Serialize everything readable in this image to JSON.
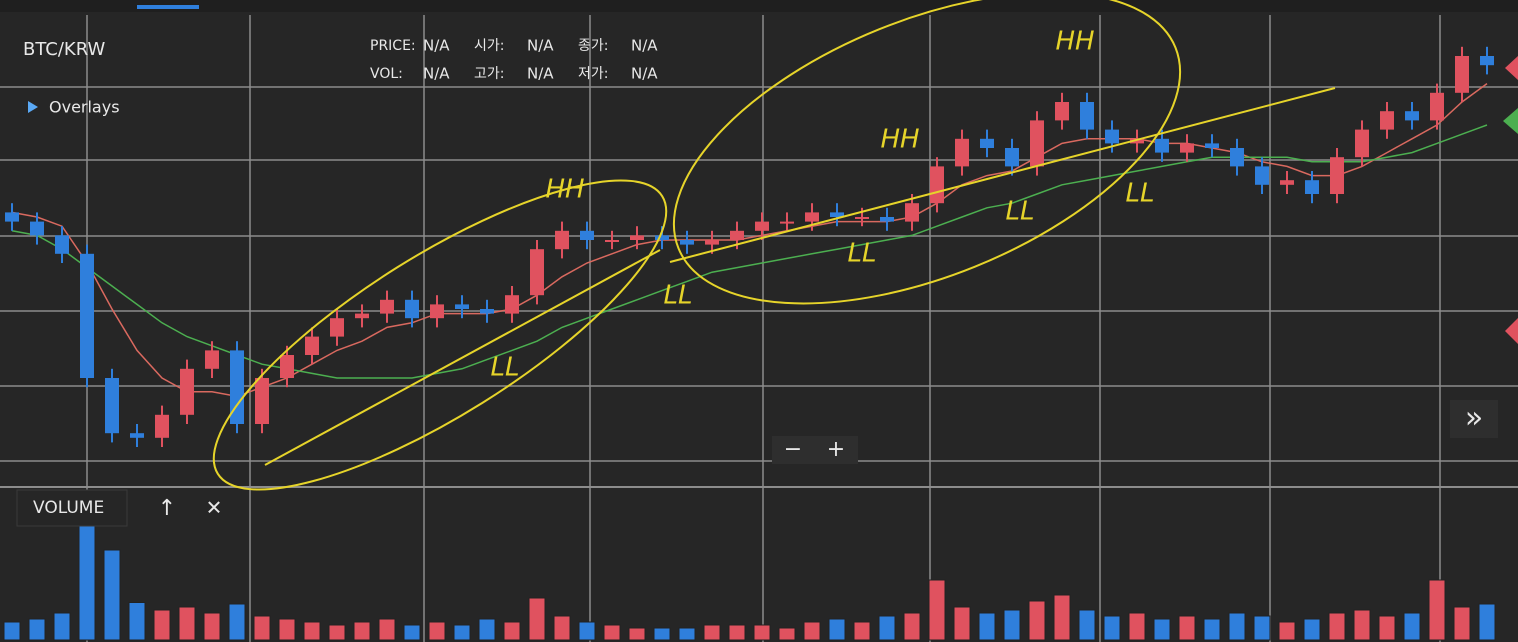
{
  "header": {
    "symbol": "BTC/KRW",
    "overlays": "Overlays",
    "info": [
      {
        "label": "PRICE:",
        "value": "N/A"
      },
      {
        "label": "시가:",
        "value": "N/A"
      },
      {
        "label": "종가:",
        "value": "N/A"
      },
      {
        "label": "VOL:",
        "value": "N/A"
      },
      {
        "label": "고가:",
        "value": "N/A"
      },
      {
        "label": "저가:",
        "value": "N/A"
      }
    ]
  },
  "zoom": {
    "out": "−",
    "in": "+"
  },
  "scroll": "»",
  "volume_panel": {
    "title": "VOLUME",
    "up": "↑",
    "close": "✕"
  },
  "chart_data": [
    {
      "type": "candlestick",
      "ylim": [
        0,
        100
      ],
      "up_color": "#e0525f",
      "down_color": "#2f7fdc",
      "open": [
        56,
        54,
        51,
        47,
        20,
        8,
        7,
        12,
        22,
        26,
        10,
        20,
        25,
        29,
        33,
        34,
        37,
        33,
        36,
        35,
        34,
        38,
        48,
        52,
        50,
        50,
        51,
        50,
        49,
        50,
        52,
        54,
        54,
        56,
        55,
        55,
        54,
        58,
        66,
        72,
        70,
        66,
        76,
        80,
        74,
        71,
        72,
        69,
        71,
        70,
        66,
        62,
        63,
        60,
        68,
        74,
        78,
        76,
        82,
        90
      ],
      "close": [
        54,
        51,
        47,
        20,
        8,
        7,
        12,
        22,
        26,
        10,
        20,
        25,
        29,
        33,
        34,
        37,
        33,
        36,
        35,
        34,
        38,
        48,
        52,
        50,
        50,
        51,
        50,
        49,
        50,
        52,
        54,
        54,
        56,
        55,
        55,
        54,
        58,
        66,
        72,
        70,
        66,
        76,
        80,
        74,
        71,
        72,
        69,
        71,
        70,
        66,
        62,
        63,
        60,
        68,
        74,
        78,
        76,
        82,
        90,
        88
      ],
      "high": [
        58,
        56,
        53,
        49,
        22,
        10,
        14,
        24,
        28,
        28,
        22,
        27,
        31,
        35,
        36,
        39,
        39,
        38,
        38,
        37,
        40,
        50,
        54,
        54,
        52,
        53,
        53,
        52,
        52,
        54,
        56,
        56,
        58,
        58,
        57,
        57,
        60,
        68,
        74,
        74,
        72,
        78,
        82,
        82,
        76,
        74,
        74,
        73,
        73,
        72,
        68,
        65,
        65,
        70,
        76,
        80,
        80,
        84,
        92,
        92
      ],
      "low": [
        52,
        49,
        45,
        18,
        6,
        5,
        5,
        10,
        20,
        8,
        8,
        18,
        23,
        27,
        31,
        32,
        31,
        31,
        33,
        32,
        32,
        36,
        46,
        48,
        48,
        48,
        48,
        47,
        47,
        48,
        50,
        52,
        52,
        53,
        53,
        52,
        52,
        56,
        64,
        68,
        64,
        64,
        74,
        72,
        69,
        69,
        67,
        67,
        68,
        64,
        60,
        60,
        58,
        58,
        66,
        72,
        74,
        74,
        80,
        86
      ],
      "lines": [
        {
          "color": "#d9695f",
          "values": [
            56,
            55,
            53,
            45,
            35,
            26,
            20,
            17,
            17,
            16,
            18,
            20,
            23,
            26,
            28,
            31,
            32,
            34,
            34,
            34,
            35,
            38,
            42,
            45,
            47,
            49,
            50,
            50,
            50,
            50,
            51,
            52,
            53,
            54,
            54,
            54,
            55,
            58,
            62,
            64,
            65,
            68,
            71,
            72,
            72,
            72,
            71,
            71,
            70,
            69,
            67,
            66,
            64,
            64,
            66,
            69,
            72,
            75,
            80,
            84
          ]
        },
        {
          "color": "#4caf50",
          "values": [
            52,
            51,
            48,
            44,
            40,
            36,
            32,
            29,
            27,
            25,
            23,
            22,
            21,
            20,
            20,
            20,
            20,
            21,
            22,
            24,
            26,
            28,
            31,
            33,
            35,
            37,
            39,
            41,
            43,
            44,
            45,
            46,
            47,
            48,
            49,
            50,
            51,
            53,
            55,
            57,
            58,
            60,
            62,
            63,
            64,
            65,
            66,
            67,
            68,
            68,
            68,
            68,
            67,
            67,
            67,
            68,
            69,
            71,
            73,
            75
          ]
        }
      ],
      "annotations": [
        "HH",
        "LL",
        "LL",
        "HH",
        "LL",
        "HH",
        "LL",
        "LL"
      ]
    },
    {
      "type": "volume",
      "ylim": [
        0,
        100
      ],
      "values": [
        12,
        14,
        18,
        90,
        60,
        25,
        20,
        22,
        18,
        24,
        16,
        14,
        12,
        10,
        12,
        14,
        10,
        12,
        10,
        14,
        12,
        28,
        16,
        12,
        10,
        8,
        8,
        8,
        10,
        10,
        10,
        8,
        12,
        14,
        12,
        16,
        18,
        40,
        22,
        18,
        20,
        26,
        30,
        20,
        16,
        18,
        14,
        16,
        14,
        18,
        16,
        12,
        14,
        18,
        20,
        16,
        18,
        40,
        22,
        24
      ]
    }
  ]
}
